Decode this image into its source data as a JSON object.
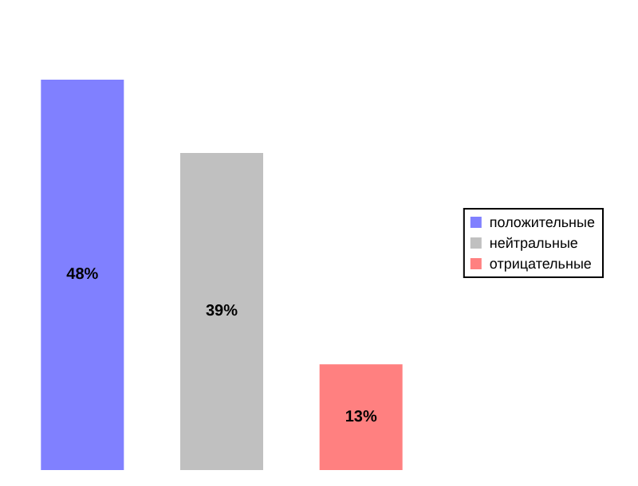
{
  "chart_data": {
    "type": "bar",
    "categories": [
      null,
      null,
      null
    ],
    "stacked": true,
    "series": [
      {
        "name": "положительные",
        "color": "#8080ff",
        "values": [
          48,
          null,
          null
        ],
        "value_labels": [
          "48%",
          null,
          null
        ]
      },
      {
        "name": "нейтральные",
        "color": "#c0c0c0",
        "values": [
          null,
          39,
          null
        ],
        "value_labels": [
          null,
          "39%",
          null
        ]
      },
      {
        "name": "отрицательные",
        "color": "#ff8080",
        "values": [
          null,
          null,
          13
        ],
        "value_labels": [
          null,
          null,
          "13%"
        ]
      }
    ],
    "legend": "right"
  }
}
